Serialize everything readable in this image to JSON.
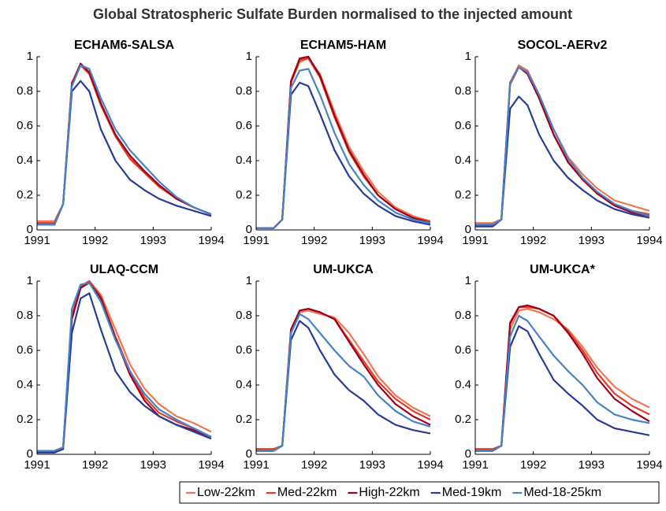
{
  "title": "Global Stratospheric Sulfate Burden normalised to the injected amount",
  "chart_data": [
    {
      "type": "line",
      "title": "ECHAM6-SALSA",
      "x": [
        1991,
        1991.3,
        1991.45,
        1991.6,
        1991.75,
        1991.9,
        1992.1,
        1992.35,
        1992.6,
        1992.85,
        1993.1,
        1993.4,
        1993.7,
        1994
      ],
      "xlim": [
        1991,
        1994
      ],
      "xticks": [
        1991,
        1992,
        1993,
        1994
      ],
      "ylim": [
        0,
        1
      ],
      "yticks": [
        0,
        0.2,
        0.4,
        0.6,
        0.8,
        1
      ],
      "series": [
        {
          "name": "Low-22km",
          "color": "#f07850",
          "values": [
            0.05,
            0.05,
            0.15,
            0.85,
            0.96,
            0.9,
            0.72,
            0.55,
            0.42,
            0.33,
            0.25,
            0.18,
            0.13,
            0.09
          ]
        },
        {
          "name": "Med-22km",
          "color": "#e03c28",
          "values": [
            0.04,
            0.04,
            0.15,
            0.85,
            0.95,
            0.9,
            0.72,
            0.54,
            0.41,
            0.33,
            0.25,
            0.18,
            0.13,
            0.09
          ]
        },
        {
          "name": "High-22km",
          "color": "#a0001e",
          "values": [
            0.03,
            0.03,
            0.15,
            0.84,
            0.96,
            0.91,
            0.73,
            0.55,
            0.43,
            0.34,
            0.26,
            0.18,
            0.13,
            0.09
          ]
        },
        {
          "name": "Med-19km",
          "color": "#283c96",
          "values": [
            0.03,
            0.03,
            0.15,
            0.8,
            0.86,
            0.8,
            0.58,
            0.4,
            0.29,
            0.23,
            0.18,
            0.14,
            0.11,
            0.08
          ]
        },
        {
          "name": "Med-18-25km",
          "color": "#4682c8",
          "values": [
            0.03,
            0.03,
            0.15,
            0.83,
            0.95,
            0.93,
            0.76,
            0.58,
            0.46,
            0.37,
            0.28,
            0.19,
            0.13,
            0.09
          ]
        }
      ]
    },
    {
      "type": "line",
      "title": "ECHAM5-HAM",
      "x": [
        1991,
        1991.3,
        1991.45,
        1991.6,
        1991.75,
        1991.9,
        1992.1,
        1992.35,
        1992.6,
        1992.85,
        1993.1,
        1993.4,
        1993.7,
        1994
      ],
      "xlim": [
        1991,
        1994
      ],
      "xticks": [
        1991,
        1992,
        1993,
        1994
      ],
      "ylim": [
        0,
        1
      ],
      "yticks": [
        0,
        0.2,
        0.4,
        0.6,
        0.8,
        1
      ],
      "series": [
        {
          "name": "Low-22km",
          "color": "#f07850",
          "values": [
            0.01,
            0.01,
            0.06,
            0.85,
            0.97,
            0.99,
            0.9,
            0.68,
            0.48,
            0.34,
            0.22,
            0.13,
            0.08,
            0.05
          ]
        },
        {
          "name": "Med-22km",
          "color": "#e03c28",
          "values": [
            0.01,
            0.01,
            0.06,
            0.85,
            0.98,
            0.99,
            0.88,
            0.65,
            0.45,
            0.31,
            0.2,
            0.12,
            0.07,
            0.05
          ]
        },
        {
          "name": "High-22km",
          "color": "#a0001e",
          "values": [
            0.01,
            0.01,
            0.06,
            0.86,
            0.99,
            1.0,
            0.89,
            0.66,
            0.46,
            0.32,
            0.2,
            0.12,
            0.07,
            0.04
          ]
        },
        {
          "name": "Med-19km",
          "color": "#283c96",
          "values": [
            0.01,
            0.01,
            0.06,
            0.78,
            0.85,
            0.83,
            0.67,
            0.46,
            0.31,
            0.21,
            0.14,
            0.08,
            0.05,
            0.03
          ]
        },
        {
          "name": "Med-18-25km",
          "color": "#4682c8",
          "values": [
            0.01,
            0.01,
            0.06,
            0.82,
            0.92,
            0.93,
            0.78,
            0.56,
            0.38,
            0.26,
            0.17,
            0.1,
            0.06,
            0.04
          ]
        }
      ]
    },
    {
      "type": "line",
      "title": "SOCOL-AERv2",
      "x": [
        1991,
        1991.3,
        1991.45,
        1991.6,
        1991.75,
        1991.9,
        1992.1,
        1992.35,
        1992.6,
        1992.85,
        1993.1,
        1993.4,
        1993.7,
        1994
      ],
      "xlim": [
        1991,
        1994
      ],
      "xticks": [
        1991,
        1992,
        1993,
        1994
      ],
      "ylim": [
        0,
        1
      ],
      "yticks": [
        0,
        0.2,
        0.4,
        0.6,
        0.8,
        1
      ],
      "series": [
        {
          "name": "Low-22km",
          "color": "#f07850",
          "values": [
            0.04,
            0.04,
            0.06,
            0.85,
            0.95,
            0.92,
            0.78,
            0.58,
            0.42,
            0.32,
            0.24,
            0.17,
            0.14,
            0.11
          ]
        },
        {
          "name": "Med-22km",
          "color": "#e03c28",
          "values": [
            0.03,
            0.03,
            0.06,
            0.85,
            0.94,
            0.91,
            0.76,
            0.55,
            0.39,
            0.29,
            0.21,
            0.14,
            0.11,
            0.09
          ]
        },
        {
          "name": "High-22km",
          "color": "#a0001e",
          "values": [
            0.03,
            0.03,
            0.06,
            0.84,
            0.94,
            0.9,
            0.76,
            0.55,
            0.39,
            0.29,
            0.21,
            0.14,
            0.1,
            0.08
          ]
        },
        {
          "name": "Med-19km",
          "color": "#283c96",
          "values": [
            0.02,
            0.02,
            0.06,
            0.7,
            0.77,
            0.72,
            0.55,
            0.4,
            0.3,
            0.23,
            0.17,
            0.12,
            0.09,
            0.07
          ]
        },
        {
          "name": "Med-18-25km",
          "color": "#4682c8",
          "values": [
            0.03,
            0.03,
            0.06,
            0.84,
            0.94,
            0.91,
            0.78,
            0.58,
            0.41,
            0.3,
            0.22,
            0.15,
            0.11,
            0.08
          ]
        }
      ]
    },
    {
      "type": "line",
      "title": "ULAQ-CCM",
      "x": [
        1991,
        1991.3,
        1991.45,
        1991.6,
        1991.75,
        1991.9,
        1992.1,
        1992.35,
        1992.6,
        1992.85,
        1993.1,
        1993.4,
        1993.7,
        1994
      ],
      "xlim": [
        1991,
        1994
      ],
      "xticks": [
        1991,
        1992,
        1993,
        1994
      ],
      "ylim": [
        0,
        1
      ],
      "yticks": [
        0,
        0.2,
        0.4,
        0.6,
        0.8,
        1
      ],
      "series": [
        {
          "name": "Low-22km",
          "color": "#f07850",
          "values": [
            0.02,
            0.02,
            0.04,
            0.8,
            0.97,
            1.0,
            0.92,
            0.72,
            0.52,
            0.38,
            0.29,
            0.22,
            0.18,
            0.13
          ]
        },
        {
          "name": "Med-22km",
          "color": "#e03c28",
          "values": [
            0.02,
            0.02,
            0.04,
            0.8,
            0.97,
            1.0,
            0.91,
            0.68,
            0.48,
            0.33,
            0.24,
            0.19,
            0.15,
            0.1
          ]
        },
        {
          "name": "High-22km",
          "color": "#a0001e",
          "values": [
            0.01,
            0.01,
            0.04,
            0.78,
            0.96,
            0.99,
            0.9,
            0.67,
            0.46,
            0.31,
            0.22,
            0.17,
            0.14,
            0.1
          ]
        },
        {
          "name": "Med-19km",
          "color": "#283c96",
          "values": [
            0.01,
            0.01,
            0.03,
            0.7,
            0.9,
            0.93,
            0.72,
            0.48,
            0.36,
            0.28,
            0.22,
            0.17,
            0.13,
            0.09
          ]
        },
        {
          "name": "Med-18-25km",
          "color": "#4682c8",
          "values": [
            0.02,
            0.02,
            0.04,
            0.84,
            0.98,
            0.99,
            0.88,
            0.66,
            0.48,
            0.35,
            0.26,
            0.2,
            0.15,
            0.1
          ]
        }
      ]
    },
    {
      "type": "line",
      "title": "UM-UKCA",
      "x": [
        1991,
        1991.3,
        1991.45,
        1991.6,
        1991.75,
        1991.9,
        1992.1,
        1992.35,
        1992.6,
        1992.85,
        1993.1,
        1993.4,
        1993.7,
        1994
      ],
      "xlim": [
        1991,
        1994
      ],
      "xticks": [
        1991,
        1992,
        1993,
        1994
      ],
      "ylim": [
        0,
        1
      ],
      "yticks": [
        0,
        0.2,
        0.4,
        0.6,
        0.8,
        1
      ],
      "series": [
        {
          "name": "Low-22km",
          "color": "#f07850",
          "values": [
            0.03,
            0.03,
            0.05,
            0.7,
            0.82,
            0.83,
            0.81,
            0.79,
            0.7,
            0.58,
            0.45,
            0.34,
            0.27,
            0.22
          ]
        },
        {
          "name": "Med-22km",
          "color": "#e03c28",
          "values": [
            0.03,
            0.03,
            0.05,
            0.72,
            0.83,
            0.84,
            0.82,
            0.78,
            0.66,
            0.54,
            0.42,
            0.32,
            0.25,
            0.2
          ]
        },
        {
          "name": "High-22km",
          "color": "#a0001e",
          "values": [
            0.02,
            0.02,
            0.05,
            0.72,
            0.83,
            0.84,
            0.82,
            0.78,
            0.65,
            0.52,
            0.4,
            0.29,
            0.22,
            0.17
          ]
        },
        {
          "name": "Med-19km",
          "color": "#283c96",
          "values": [
            0.02,
            0.02,
            0.05,
            0.66,
            0.77,
            0.73,
            0.6,
            0.46,
            0.37,
            0.31,
            0.23,
            0.17,
            0.14,
            0.12
          ]
        },
        {
          "name": "Med-18-25km",
          "color": "#4682c8",
          "values": [
            0.02,
            0.02,
            0.05,
            0.7,
            0.81,
            0.78,
            0.7,
            0.6,
            0.51,
            0.45,
            0.34,
            0.25,
            0.19,
            0.16
          ]
        }
      ]
    },
    {
      "type": "line",
      "title": "UM-UKCA*",
      "x": [
        1991,
        1991.3,
        1991.45,
        1991.6,
        1991.75,
        1991.9,
        1992.1,
        1992.35,
        1992.6,
        1992.85,
        1993.1,
        1993.4,
        1993.7,
        1994
      ],
      "xlim": [
        1991,
        1994
      ],
      "xticks": [
        1991,
        1992,
        1993,
        1994
      ],
      "ylim": [
        0,
        1
      ],
      "yticks": [
        0,
        0.2,
        0.4,
        0.6,
        0.8,
        1
      ],
      "series": [
        {
          "name": "Low-22km",
          "color": "#f07850",
          "values": [
            0.03,
            0.03,
            0.05,
            0.72,
            0.83,
            0.84,
            0.82,
            0.78,
            0.72,
            0.62,
            0.5,
            0.39,
            0.32,
            0.27
          ]
        },
        {
          "name": "Med-22km",
          "color": "#e03c28",
          "values": [
            0.03,
            0.03,
            0.05,
            0.75,
            0.85,
            0.85,
            0.84,
            0.8,
            0.71,
            0.6,
            0.47,
            0.35,
            0.28,
            0.23
          ]
        },
        {
          "name": "High-22km",
          "color": "#a0001e",
          "values": [
            0.02,
            0.02,
            0.05,
            0.76,
            0.85,
            0.86,
            0.84,
            0.8,
            0.7,
            0.58,
            0.44,
            0.32,
            0.25,
            0.19
          ]
        },
        {
          "name": "Med-19km",
          "color": "#283c96",
          "values": [
            0.02,
            0.02,
            0.05,
            0.62,
            0.74,
            0.71,
            0.58,
            0.43,
            0.35,
            0.28,
            0.2,
            0.15,
            0.13,
            0.11
          ]
        },
        {
          "name": "Med-18-25km",
          "color": "#4682c8",
          "values": [
            0.02,
            0.02,
            0.05,
            0.68,
            0.8,
            0.77,
            0.68,
            0.57,
            0.48,
            0.4,
            0.3,
            0.23,
            0.2,
            0.18
          ]
        }
      ]
    }
  ]
}
